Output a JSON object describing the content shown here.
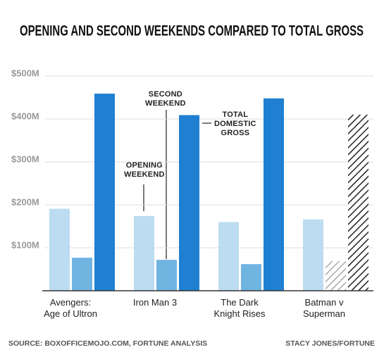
{
  "chart_data": {
    "type": "bar",
    "title": "OPENING AND SECOND WEEKENDS COMPARED TO TOTAL GROSS",
    "categories": [
      "Avengers:\nAge of Ultron",
      "Iron Man 3",
      "The Dark\nKnight Rises",
      "Batman v\nSuperman"
    ],
    "series": [
      {
        "name": "OPENING\nWEEKEND",
        "color": "#bcdcf1",
        "values": [
          191,
          174,
          160,
          166
        ]
      },
      {
        "name": "SECOND\nWEEKEND",
        "color": "#70b4e2",
        "hatch_color": "#a9a9a9",
        "hatched": [
          false,
          false,
          false,
          true
        ],
        "values": [
          77,
          72,
          62,
          69
        ]
      },
      {
        "name": "TOTAL\nDOMESTIC\nGROSS",
        "color": "#1f80d2",
        "hatch_color": "#222222",
        "hatched": [
          false,
          false,
          false,
          true
        ],
        "values": [
          459,
          409,
          448,
          410
        ]
      }
    ],
    "ylim": [
      0,
      500
    ],
    "yticks": [
      {
        "value": 100,
        "label": "$100M"
      },
      {
        "value": 200,
        "label": "$200M"
      },
      {
        "value": 300,
        "label": "$300M"
      },
      {
        "value": 400,
        "label": "$400M"
      },
      {
        "value": 500,
        "label": "$500M"
      }
    ],
    "grid": true,
    "source": "SOURCE: BOXOFFICEMOJO.COM, FORTUNE ANALYSIS",
    "credit": "STACY JONES/FORTUNE"
  }
}
